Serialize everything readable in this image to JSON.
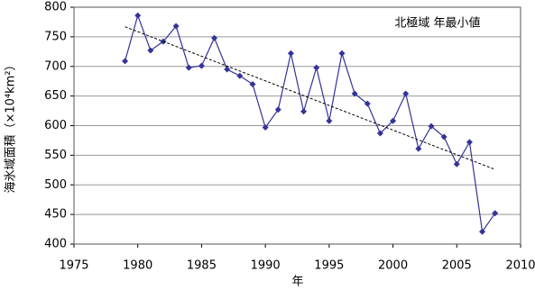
{
  "chart_data": {
    "type": "line",
    "title": "北極域 年最小値",
    "x_label": "年",
    "y_label": "海氷域面積（×10⁴km²）",
    "x": [
      1979,
      1980,
      1981,
      1982,
      1983,
      1984,
      1985,
      1986,
      1987,
      1988,
      1989,
      1990,
      1991,
      1992,
      1993,
      1994,
      1995,
      1996,
      1997,
      1998,
      1999,
      2000,
      2001,
      2002,
      2003,
      2004,
      2005,
      2006,
      2007,
      2008
    ],
    "series": [
      {
        "color": "#333399",
        "values": [
          709,
          786,
          727,
          742,
          768,
          698,
          701,
          748,
          695,
          684,
          670,
          597,
          627,
          722,
          624,
          698,
          608,
          722,
          654,
          637,
          587,
          608,
          654,
          561,
          599,
          581,
          535,
          572,
          421,
          452
        ]
      }
    ],
    "trend_line": {
      "x": [
        1979,
        2008
      ],
      "values": [
        767,
        526
      ],
      "color": "#000000",
      "style": "dashed"
    },
    "xlim": [
      1975,
      2010
    ],
    "xticks": [
      1975,
      1980,
      1985,
      1990,
      1995,
      2000,
      2005,
      2010
    ],
    "ylim": [
      400,
      800
    ],
    "yticks": [
      400,
      450,
      500,
      550,
      600,
      650,
      700,
      750,
      800
    ],
    "grid": true
  }
}
